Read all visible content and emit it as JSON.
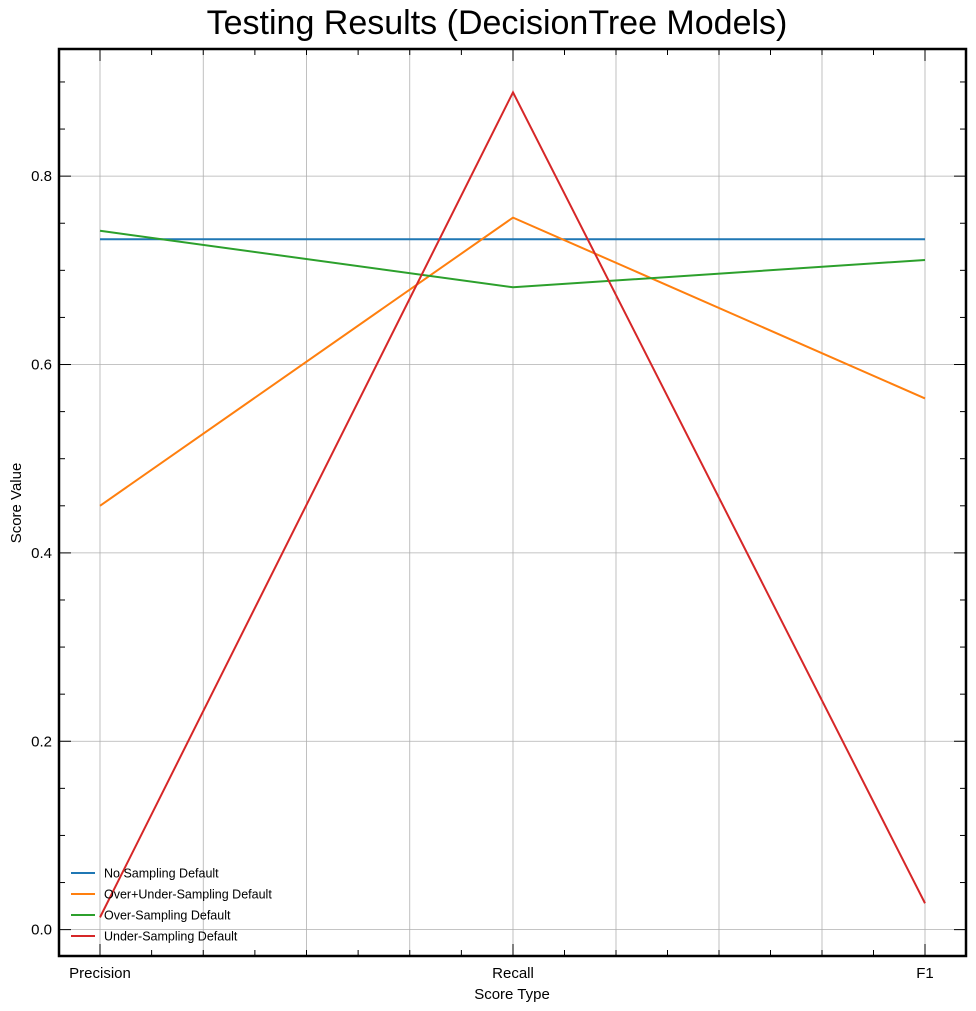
{
  "chart_data": {
    "type": "line",
    "title": "Testing Results (DecisionTree Models)",
    "xlabel": "Score Type",
    "ylabel": "Score Value",
    "categories": [
      "Precision",
      "Recall",
      "F1"
    ],
    "ylim": [
      -0.028,
      0.935
    ],
    "yticks": [
      "0.0",
      "0.2",
      "0.4",
      "0.6",
      "0.8"
    ],
    "grid": true,
    "legend_position": "lower-left",
    "series": [
      {
        "name": "No Sampling Default",
        "color": "#1f77b4",
        "values": [
          0.733,
          0.733,
          0.733
        ]
      },
      {
        "name": "Over+Under-Sampling Default",
        "color": "#ff7f0e",
        "values": [
          0.45,
          0.756,
          0.564
        ]
      },
      {
        "name": "Over-Sampling Default",
        "color": "#2ca02c",
        "values": [
          0.742,
          0.682,
          0.711
        ]
      },
      {
        "name": "Under-Sampling Default",
        "color": "#d62728",
        "values": [
          0.013,
          0.889,
          0.028
        ]
      }
    ]
  }
}
